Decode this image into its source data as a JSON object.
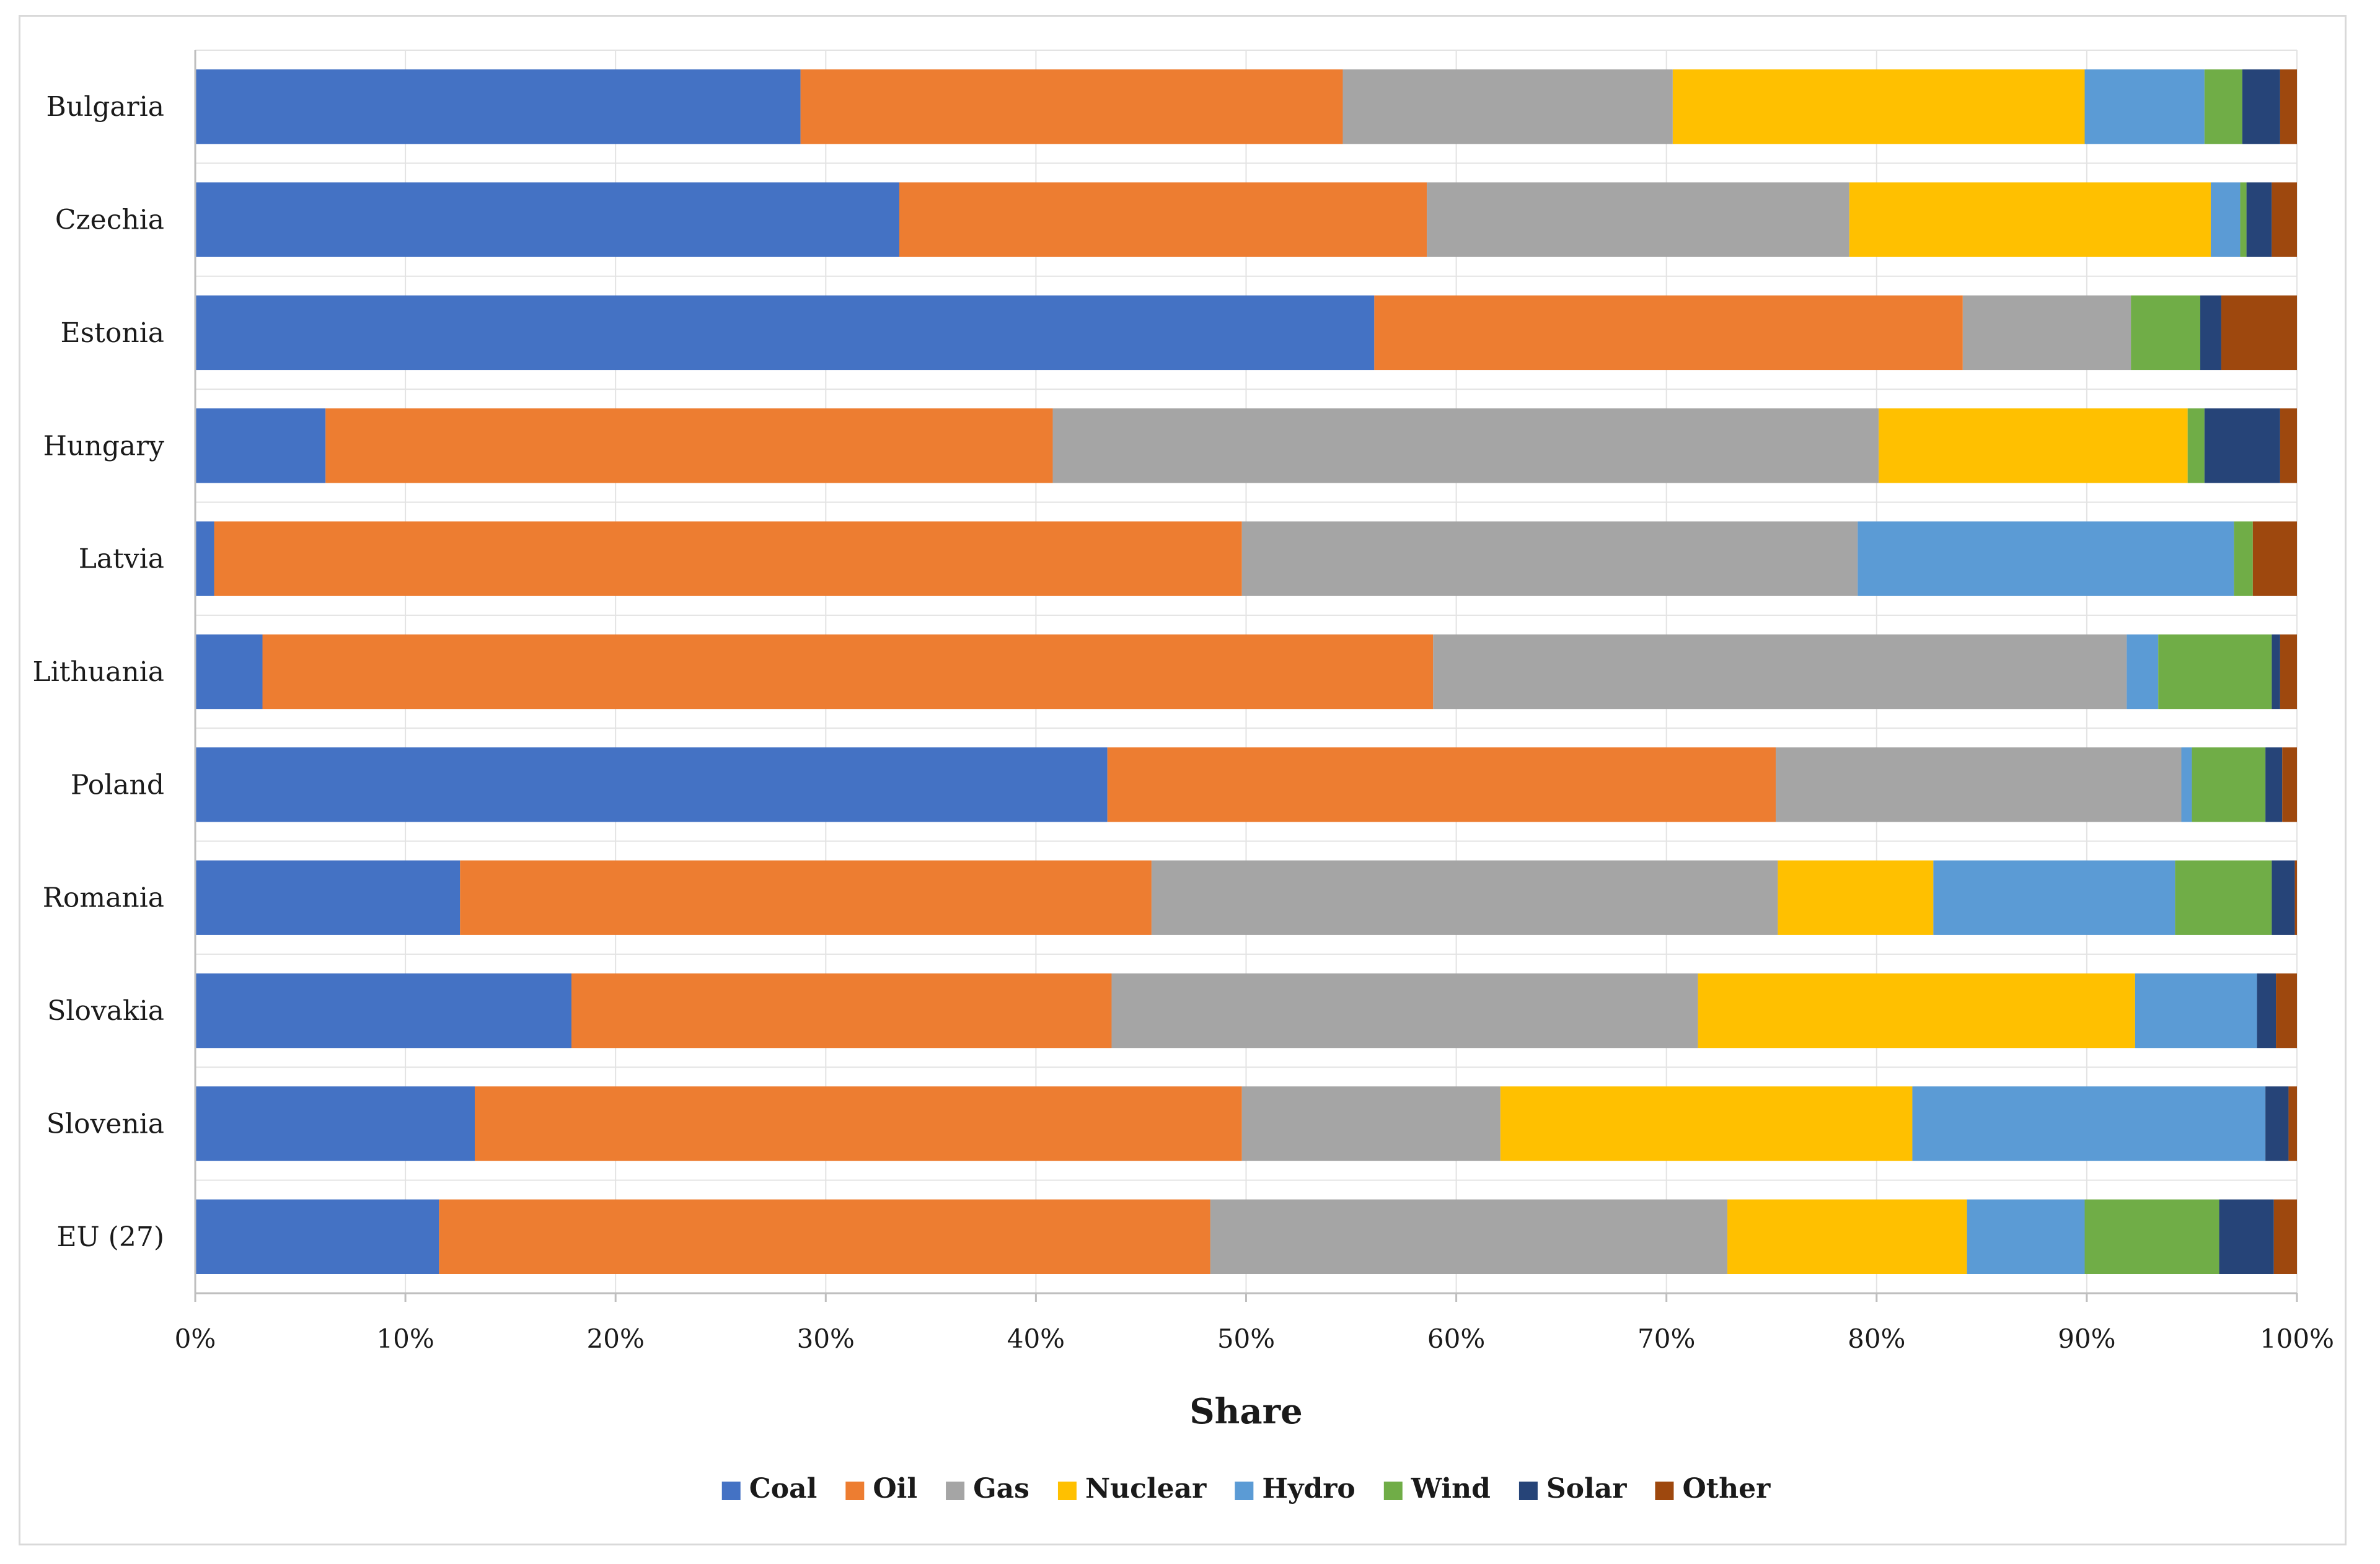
{
  "chart_data": {
    "type": "bar",
    "orientation": "horizontal",
    "stacked": "percent",
    "title": "",
    "xlabel": "Share",
    "ylabel": "",
    "xlim": [
      0,
      100
    ],
    "x_ticks": [
      "0%",
      "10%",
      "20%",
      "30%",
      "40%",
      "50%",
      "60%",
      "70%",
      "80%",
      "90%",
      "100%"
    ],
    "grid": true,
    "legend_position": "bottom",
    "categories": [
      "Bulgaria",
      "Czechia",
      "Estonia",
      "Hungary",
      "Latvia",
      "Lithuania",
      "Poland",
      "Romania",
      "Slovakia",
      "Slovenia",
      "EU (27)"
    ],
    "series": [
      {
        "name": "Coal",
        "color": "#4472c4",
        "values": [
          28.8,
          33.5,
          56.1,
          6.2,
          0.9,
          3.2,
          43.4,
          12.6,
          17.9,
          13.3,
          11.6
        ]
      },
      {
        "name": "Oil",
        "color": "#ed7d31",
        "values": [
          25.8,
          25.1,
          28.0,
          34.6,
          48.9,
          55.7,
          31.8,
          32.9,
          25.7,
          36.5,
          36.7
        ]
      },
      {
        "name": "Gas",
        "color": "#a5a5a5",
        "values": [
          15.7,
          20.1,
          8.0,
          39.3,
          29.3,
          33.0,
          19.3,
          29.8,
          27.9,
          12.3,
          24.6
        ]
      },
      {
        "name": "Nuclear",
        "color": "#ffc000",
        "values": [
          19.6,
          17.2,
          0.0,
          14.7,
          0.0,
          0.0,
          0.0,
          7.4,
          20.8,
          19.6,
          11.4
        ]
      },
      {
        "name": "Hydro",
        "color": "#5b9bd5",
        "values": [
          5.7,
          1.4,
          0.0,
          0.0,
          17.9,
          1.5,
          0.5,
          11.5,
          5.8,
          16.8,
          5.6
        ]
      },
      {
        "name": "Wind",
        "color": "#70ad47",
        "values": [
          1.8,
          0.3,
          3.3,
          0.8,
          0.9,
          5.4,
          3.5,
          4.6,
          0.0,
          0.0,
          6.4
        ]
      },
      {
        "name": "Solar",
        "color": "#264478",
        "values": [
          1.8,
          1.2,
          1.0,
          3.6,
          0.0,
          0.4,
          0.8,
          1.1,
          0.9,
          1.1,
          2.6
        ]
      },
      {
        "name": "Other",
        "color": "#9e480e",
        "values": [
          0.8,
          1.2,
          3.6,
          0.8,
          2.1,
          0.8,
          0.7,
          0.1,
          1.0,
          0.4,
          1.1
        ]
      }
    ]
  }
}
